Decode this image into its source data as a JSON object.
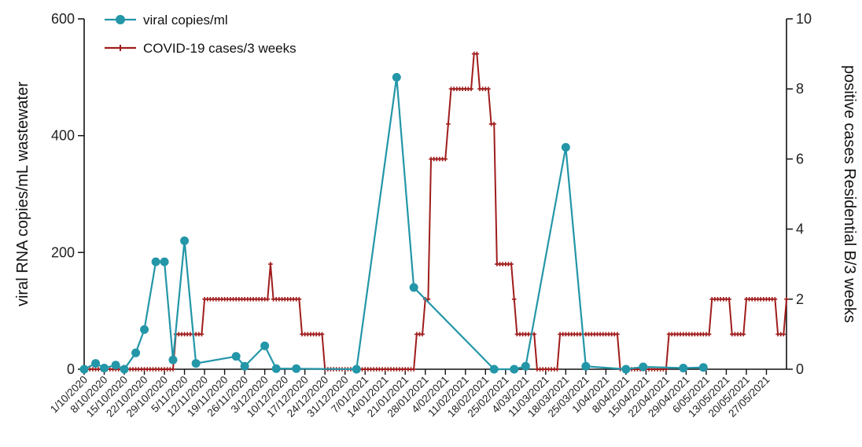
{
  "chart_data": {
    "type": "line",
    "ylabel_left": "viral RNA copies/mL wastewater",
    "ylabel_right": "positive cases Residential B/3 weeks",
    "ylim_left": [
      0,
      600
    ],
    "ylim_right": [
      0,
      10
    ],
    "yticks_left": [
      "0",
      "200",
      "400",
      "600"
    ],
    "yticks_right": [
      "0",
      "2",
      "4",
      "6",
      "8",
      "10"
    ],
    "xlim": [
      "2020-10-01",
      "2021-06-03"
    ],
    "x_tick_dates": [
      "2020-10-01",
      "2020-10-08",
      "2020-10-15",
      "2020-10-22",
      "2020-10-29",
      "2020-11-05",
      "2020-11-12",
      "2020-11-19",
      "2020-11-26",
      "2020-12-03",
      "2020-12-10",
      "2020-12-17",
      "2020-12-24",
      "2020-12-31",
      "2021-01-07",
      "2021-01-14",
      "2021-01-21",
      "2021-01-28",
      "2021-02-04",
      "2021-02-11",
      "2021-02-18",
      "2021-02-25",
      "2021-03-04",
      "2021-03-11",
      "2021-03-18",
      "2021-03-25",
      "2021-04-01",
      "2021-04-08",
      "2021-04-15",
      "2021-04-22",
      "2021-04-29",
      "2021-05-06",
      "2021-05-13",
      "2021-05-20",
      "2021-05-27"
    ],
    "x_tick_labels": [
      "1/10/2020",
      "8/10/2020",
      "15/10/2020",
      "22/10/2020",
      "29/10/2020",
      "5/11/2020",
      "12/11/2020",
      "19/11/2020",
      "26/11/2020",
      "3/12/2020",
      "10/12/2020",
      "17/12/2020",
      "24/12/2020",
      "31/12/2020",
      "7/01/2021",
      "14/01/2021",
      "21/01/2021",
      "28/01/2021",
      "4/02/2021",
      "11/02/2021",
      "18/02/2021",
      "25/02/2021",
      "4/03/2021",
      "11/03/2021",
      "18/03/2021",
      "25/03/2021",
      "1/04/2021",
      "8/04/2021",
      "15/04/2021",
      "22/04/2021",
      "29/04/2021",
      "6/05/2021",
      "13/05/2021",
      "20/05/2021",
      "27/05/2021"
    ],
    "legend_position": "top-left",
    "series": [
      {
        "name": "viral copies/ml",
        "axis": "left",
        "color": "#2396a8",
        "marker": "circle",
        "points": [
          {
            "x": "2020-10-01",
            "y": 0
          },
          {
            "x": "2020-10-05",
            "y": 10
          },
          {
            "x": "2020-10-08",
            "y": 2
          },
          {
            "x": "2020-10-12",
            "y": 7
          },
          {
            "x": "2020-10-15",
            "y": 0
          },
          {
            "x": "2020-10-19",
            "y": 28
          },
          {
            "x": "2020-10-22",
            "y": 68
          },
          {
            "x": "2020-10-26",
            "y": 184
          },
          {
            "x": "2020-10-29",
            "y": 184
          },
          {
            "x": "2020-11-01",
            "y": 16
          },
          {
            "x": "2020-11-05",
            "y": 220
          },
          {
            "x": "2020-11-09",
            "y": 10
          },
          {
            "x": "2020-11-23",
            "y": 22
          },
          {
            "x": "2020-11-26",
            "y": 5
          },
          {
            "x": "2020-12-03",
            "y": 40
          },
          {
            "x": "2020-12-07",
            "y": 1
          },
          {
            "x": "2020-12-14",
            "y": 1
          },
          {
            "x": "2021-01-04",
            "y": 0
          },
          {
            "x": "2021-01-18",
            "y": 500
          },
          {
            "x": "2021-01-24",
            "y": 140
          },
          {
            "x": "2021-02-21",
            "y": 0
          },
          {
            "x": "2021-02-28",
            "y": 0
          },
          {
            "x": "2021-03-04",
            "y": 5
          },
          {
            "x": "2021-03-18",
            "y": 380
          },
          {
            "x": "2021-03-25",
            "y": 5
          },
          {
            "x": "2021-04-08",
            "y": 0
          },
          {
            "x": "2021-04-14",
            "y": 4
          },
          {
            "x": "2021-04-28",
            "y": 2
          },
          {
            "x": "2021-05-05",
            "y": 3
          }
        ]
      },
      {
        "name": "COVID-19 cases/3 weeks",
        "axis": "right",
        "color": "#a01c1c",
        "marker": "plus",
        "steps": [
          {
            "from": "2020-10-01",
            "to": "2020-11-01",
            "y": 0
          },
          {
            "from": "2020-11-02",
            "to": "2020-11-11",
            "y": 1
          },
          {
            "from": "2020-11-12",
            "to": "2020-11-29",
            "y": 2
          },
          {
            "from": "2020-11-30",
            "to": "2020-12-04",
            "y": 2
          },
          {
            "from": "2020-12-05",
            "to": "2020-12-05",
            "y": 3
          },
          {
            "from": "2020-12-06",
            "to": "2020-12-15",
            "y": 2
          },
          {
            "from": "2020-12-16",
            "to": "2020-12-23",
            "y": 1
          },
          {
            "from": "2020-12-24",
            "to": "2021-01-24",
            "y": 0
          },
          {
            "from": "2021-01-25",
            "to": "2021-01-27",
            "y": 1
          },
          {
            "from": "2021-01-28",
            "to": "2021-01-29",
            "y": 2
          },
          {
            "from": "2021-01-30",
            "to": "2021-02-04",
            "y": 6
          },
          {
            "from": "2021-02-05",
            "to": "2021-02-05",
            "y": 7
          },
          {
            "from": "2021-02-06",
            "to": "2021-02-13",
            "y": 8
          },
          {
            "from": "2021-02-14",
            "to": "2021-02-15",
            "y": 9
          },
          {
            "from": "2021-02-16",
            "to": "2021-02-19",
            "y": 8
          },
          {
            "from": "2021-02-20",
            "to": "2021-02-21",
            "y": 7
          },
          {
            "from": "2021-02-22",
            "to": "2021-02-27",
            "y": 3
          },
          {
            "from": "2021-02-28",
            "to": "2021-02-28",
            "y": 2
          },
          {
            "from": "2021-03-01",
            "to": "2021-03-07",
            "y": 1
          },
          {
            "from": "2021-03-08",
            "to": "2021-03-15",
            "y": 0
          },
          {
            "from": "2021-03-16",
            "to": "2021-04-05",
            "y": 1
          },
          {
            "from": "2021-04-06",
            "to": "2021-04-22",
            "y": 0
          },
          {
            "from": "2021-04-23",
            "to": "2021-05-07",
            "y": 1
          },
          {
            "from": "2021-05-08",
            "to": "2021-05-14",
            "y": 2
          },
          {
            "from": "2021-05-15",
            "to": "2021-05-19",
            "y": 1
          },
          {
            "from": "2021-05-20",
            "to": "2021-05-30",
            "y": 2
          },
          {
            "from": "2021-05-31",
            "to": "2021-06-02",
            "y": 1
          },
          {
            "from": "2021-06-03",
            "to": "2021-06-03",
            "y": 2
          }
        ]
      }
    ]
  }
}
